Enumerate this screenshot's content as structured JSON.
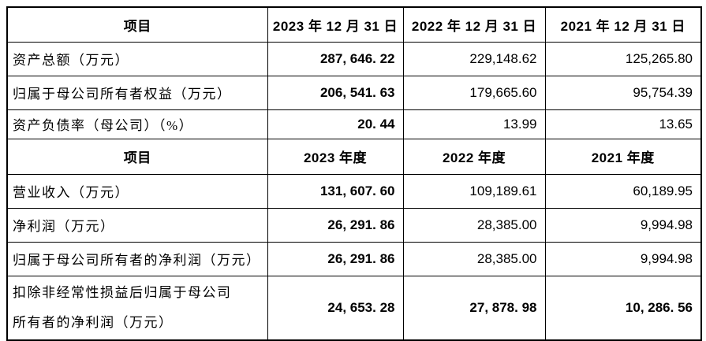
{
  "table": {
    "header_bg": "#d9d9d9",
    "border_color": "#000000",
    "balance_sheet": {
      "header": {
        "item": "项目",
        "periods": [
          "2023 年 12 月 31 日",
          "2022 年 12 月 31 日",
          "2021 年 12 月 31 日"
        ]
      },
      "rows": [
        {
          "label": "资产总额（万元）",
          "values": [
            "287, 646. 22",
            "229,148.62",
            "125,265.80"
          ]
        },
        {
          "label": "归属于母公司所有者权益（万元）",
          "values": [
            "206, 541. 63",
            "179,665.60",
            "95,754.39"
          ]
        },
        {
          "label": "资产负债率（母公司）（%）",
          "values": [
            "20. 44",
            "13.99",
            "13.65"
          ]
        }
      ]
    },
    "income_statement": {
      "header": {
        "item": "项目",
        "periods": [
          "2023 年度",
          "2022 年度",
          "2021 年度"
        ]
      },
      "rows": [
        {
          "label": "营业收入（万元）",
          "values": [
            "131, 607. 60",
            "109,189.61",
            "60,189.95"
          ]
        },
        {
          "label": "净利润（万元）",
          "values": [
            "26, 291. 86",
            "28,385.00",
            "9,994.98"
          ]
        },
        {
          "label": "归属于母公司所有者的净利润（万元）",
          "values": [
            "26, 291. 86",
            "28,385.00",
            "9,994.98"
          ]
        },
        {
          "label": "扣除非经常性损益后归属于母公司所有者的净利润（万元）",
          "label_lines": [
            "扣除非经常性损益后归属于母公司",
            "所有者的净利润（万元）"
          ],
          "values": [
            "24, 653. 28",
            "27, 878. 98",
            "10, 286. 56"
          ]
        }
      ]
    }
  }
}
